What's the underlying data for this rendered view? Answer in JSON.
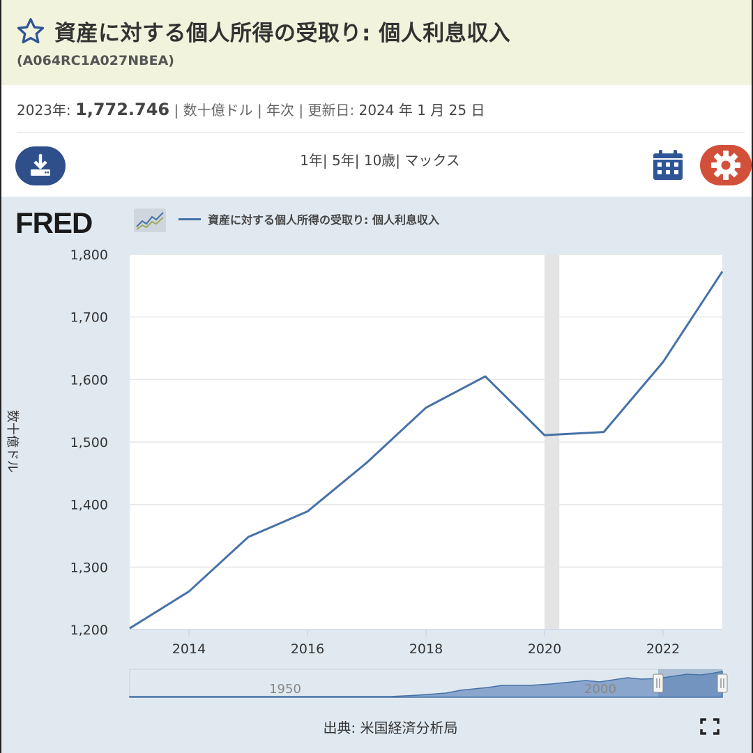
{
  "header": {
    "title": "資産に対する個人所得の受取り: 個人利息収入",
    "series_id": "(A064RC1A027NBEA)"
  },
  "meta": {
    "period_label": "2023年:",
    "value": "1,772.746",
    "units": "| 数十億ドル | 年次 | 更新日:",
    "updated": "2024 年 1 月 25 日"
  },
  "toolbar": {
    "ranges": "1年| 5年| 10歳| マックス"
  },
  "icons": {
    "star": "star-outline-icon",
    "download": "download-icon",
    "calendar": "calendar-icon",
    "settings": "gear-icon",
    "fullscreen": "fullscreen-icon",
    "fred_mini": "fred-chart-mini-icon"
  },
  "colors": {
    "series": "#4572a7",
    "header_bg": "#f2f3dc",
    "chart_bg": "#e1e9f0",
    "download_bg": "#2f4f8a",
    "settings_bg": "#d2503a",
    "recession": "#e4e4e4"
  },
  "logo": "FRED",
  "source": "出典: 米国経済分析局",
  "chart_data": {
    "type": "line",
    "legend_position": "top-left",
    "grid": true,
    "ylabel": "数十億ドル",
    "xlim": [
      2013,
      2023
    ],
    "ylim": [
      1200,
      1800
    ],
    "y_ticks": [
      "1,200",
      "1,300",
      "1,400",
      "1,500",
      "1,600",
      "1,700",
      "1,800"
    ],
    "x_ticks": [
      "2014",
      "2016",
      "2018",
      "2020",
      "2022"
    ],
    "recession": [
      2020.0,
      2020.25
    ],
    "series": [
      {
        "name": "資産に対する個人所得の受取り: 個人利息収入",
        "x": [
          2013,
          2014,
          2015,
          2016,
          2017,
          2018,
          2019,
          2020,
          2021,
          2022,
          2023
        ],
        "values": [
          1202,
          1261,
          1348,
          1389,
          1467,
          1555,
          1605,
          1511,
          1516,
          1628,
          1772.746
        ]
      }
    ],
    "navigator": {
      "labels": [
        "1950",
        "2000"
      ]
    }
  }
}
